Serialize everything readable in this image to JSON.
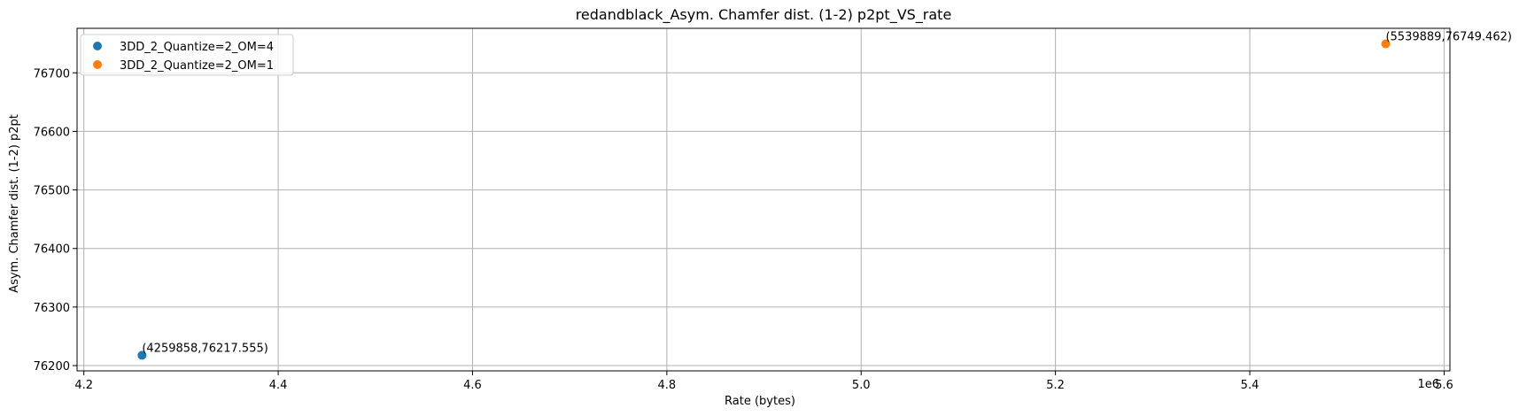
{
  "chart_data": {
    "type": "scatter",
    "title": "redandblack_Asym. Chamfer dist. (1-2) p2pt_VS_rate",
    "xlabel": "Rate (bytes)",
    "ylabel": "Asym. Chamfer dist. (1-2) p2pt",
    "x_offset_label": "1e6",
    "xlim": [
      4.193,
      5.606
    ],
    "ylim": [
      76191.0,
      76776.0
    ],
    "x_ticks": [
      4.2,
      4.4,
      4.6,
      4.8,
      5.0,
      5.2,
      5.4,
      5.6
    ],
    "x_tick_labels": [
      "4.2",
      "4.4",
      "4.6",
      "4.8",
      "5.0",
      "5.2",
      "5.4",
      "5.6"
    ],
    "y_ticks": [
      76200,
      76300,
      76400,
      76500,
      76600,
      76700
    ],
    "y_tick_labels": [
      "76200",
      "76300",
      "76400",
      "76500",
      "76600",
      "76700"
    ],
    "grid": true,
    "legend_position": "top-left",
    "series": [
      {
        "name": "3DD_2_Quantize=2_OM=4",
        "color": "#1f77b4",
        "points": [
          {
            "x": 4.259858,
            "y": 76217.555,
            "label": "(4259858,76217.555)"
          }
        ]
      },
      {
        "name": "3DD_2_Quantize=2_OM=1",
        "color": "#ff7f0e",
        "points": [
          {
            "x": 5.539889,
            "y": 76749.462,
            "label": "(5539889,76749.462)"
          }
        ]
      }
    ]
  }
}
